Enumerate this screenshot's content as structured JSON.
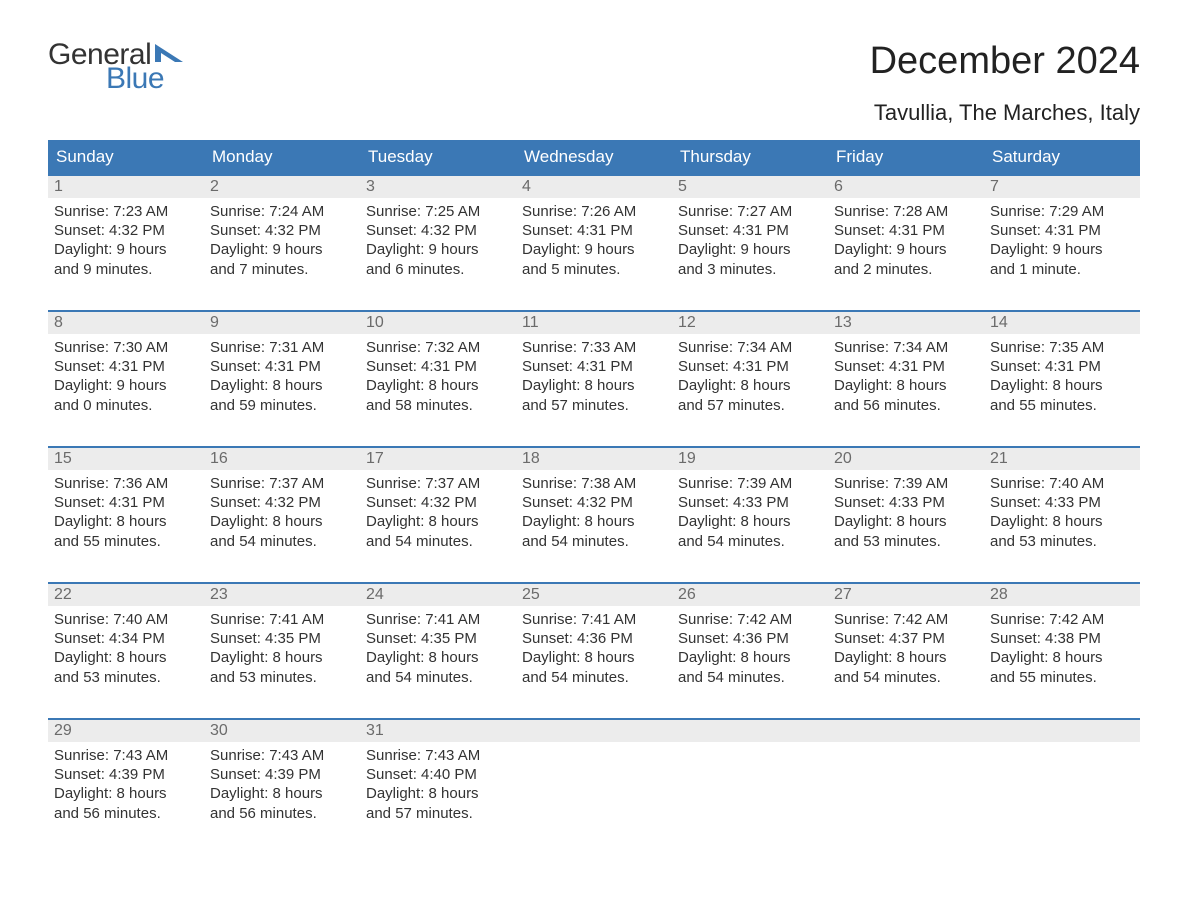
{
  "logo": {
    "word1": "General",
    "word2": "Blue",
    "text_color": "#333333",
    "accent_color": "#3b78b5"
  },
  "title": "December 2024",
  "subtitle": "Tavullia, The Marches, Italy",
  "colors": {
    "header_bg": "#3b78b5",
    "header_text": "#ffffff",
    "daynum_bg": "#ececec",
    "daynum_text": "#6b6b6b",
    "body_text": "#333333",
    "row_border": "#3b78b5",
    "page_bg": "#ffffff"
  },
  "typography": {
    "title_fontsize": 38,
    "subtitle_fontsize": 22,
    "weekday_fontsize": 17,
    "daynum_fontsize": 16,
    "body_fontsize": 15,
    "font_family": "Arial"
  },
  "weekdays": [
    "Sunday",
    "Monday",
    "Tuesday",
    "Wednesday",
    "Thursday",
    "Friday",
    "Saturday"
  ],
  "weeks": [
    [
      {
        "day": "1",
        "sunrise": "Sunrise: 7:23 AM",
        "sunset": "Sunset: 4:32 PM",
        "daylight1": "Daylight: 9 hours",
        "daylight2": "and 9 minutes."
      },
      {
        "day": "2",
        "sunrise": "Sunrise: 7:24 AM",
        "sunset": "Sunset: 4:32 PM",
        "daylight1": "Daylight: 9 hours",
        "daylight2": "and 7 minutes."
      },
      {
        "day": "3",
        "sunrise": "Sunrise: 7:25 AM",
        "sunset": "Sunset: 4:32 PM",
        "daylight1": "Daylight: 9 hours",
        "daylight2": "and 6 minutes."
      },
      {
        "day": "4",
        "sunrise": "Sunrise: 7:26 AM",
        "sunset": "Sunset: 4:31 PM",
        "daylight1": "Daylight: 9 hours",
        "daylight2": "and 5 minutes."
      },
      {
        "day": "5",
        "sunrise": "Sunrise: 7:27 AM",
        "sunset": "Sunset: 4:31 PM",
        "daylight1": "Daylight: 9 hours",
        "daylight2": "and 3 minutes."
      },
      {
        "day": "6",
        "sunrise": "Sunrise: 7:28 AM",
        "sunset": "Sunset: 4:31 PM",
        "daylight1": "Daylight: 9 hours",
        "daylight2": "and 2 minutes."
      },
      {
        "day": "7",
        "sunrise": "Sunrise: 7:29 AM",
        "sunset": "Sunset: 4:31 PM",
        "daylight1": "Daylight: 9 hours",
        "daylight2": "and 1 minute."
      }
    ],
    [
      {
        "day": "8",
        "sunrise": "Sunrise: 7:30 AM",
        "sunset": "Sunset: 4:31 PM",
        "daylight1": "Daylight: 9 hours",
        "daylight2": "and 0 minutes."
      },
      {
        "day": "9",
        "sunrise": "Sunrise: 7:31 AM",
        "sunset": "Sunset: 4:31 PM",
        "daylight1": "Daylight: 8 hours",
        "daylight2": "and 59 minutes."
      },
      {
        "day": "10",
        "sunrise": "Sunrise: 7:32 AM",
        "sunset": "Sunset: 4:31 PM",
        "daylight1": "Daylight: 8 hours",
        "daylight2": "and 58 minutes."
      },
      {
        "day": "11",
        "sunrise": "Sunrise: 7:33 AM",
        "sunset": "Sunset: 4:31 PM",
        "daylight1": "Daylight: 8 hours",
        "daylight2": "and 57 minutes."
      },
      {
        "day": "12",
        "sunrise": "Sunrise: 7:34 AM",
        "sunset": "Sunset: 4:31 PM",
        "daylight1": "Daylight: 8 hours",
        "daylight2": "and 57 minutes."
      },
      {
        "day": "13",
        "sunrise": "Sunrise: 7:34 AM",
        "sunset": "Sunset: 4:31 PM",
        "daylight1": "Daylight: 8 hours",
        "daylight2": "and 56 minutes."
      },
      {
        "day": "14",
        "sunrise": "Sunrise: 7:35 AM",
        "sunset": "Sunset: 4:31 PM",
        "daylight1": "Daylight: 8 hours",
        "daylight2": "and 55 minutes."
      }
    ],
    [
      {
        "day": "15",
        "sunrise": "Sunrise: 7:36 AM",
        "sunset": "Sunset: 4:31 PM",
        "daylight1": "Daylight: 8 hours",
        "daylight2": "and 55 minutes."
      },
      {
        "day": "16",
        "sunrise": "Sunrise: 7:37 AM",
        "sunset": "Sunset: 4:32 PM",
        "daylight1": "Daylight: 8 hours",
        "daylight2": "and 54 minutes."
      },
      {
        "day": "17",
        "sunrise": "Sunrise: 7:37 AM",
        "sunset": "Sunset: 4:32 PM",
        "daylight1": "Daylight: 8 hours",
        "daylight2": "and 54 minutes."
      },
      {
        "day": "18",
        "sunrise": "Sunrise: 7:38 AM",
        "sunset": "Sunset: 4:32 PM",
        "daylight1": "Daylight: 8 hours",
        "daylight2": "and 54 minutes."
      },
      {
        "day": "19",
        "sunrise": "Sunrise: 7:39 AM",
        "sunset": "Sunset: 4:33 PM",
        "daylight1": "Daylight: 8 hours",
        "daylight2": "and 54 minutes."
      },
      {
        "day": "20",
        "sunrise": "Sunrise: 7:39 AM",
        "sunset": "Sunset: 4:33 PM",
        "daylight1": "Daylight: 8 hours",
        "daylight2": "and 53 minutes."
      },
      {
        "day": "21",
        "sunrise": "Sunrise: 7:40 AM",
        "sunset": "Sunset: 4:33 PM",
        "daylight1": "Daylight: 8 hours",
        "daylight2": "and 53 minutes."
      }
    ],
    [
      {
        "day": "22",
        "sunrise": "Sunrise: 7:40 AM",
        "sunset": "Sunset: 4:34 PM",
        "daylight1": "Daylight: 8 hours",
        "daylight2": "and 53 minutes."
      },
      {
        "day": "23",
        "sunrise": "Sunrise: 7:41 AM",
        "sunset": "Sunset: 4:35 PM",
        "daylight1": "Daylight: 8 hours",
        "daylight2": "and 53 minutes."
      },
      {
        "day": "24",
        "sunrise": "Sunrise: 7:41 AM",
        "sunset": "Sunset: 4:35 PM",
        "daylight1": "Daylight: 8 hours",
        "daylight2": "and 54 minutes."
      },
      {
        "day": "25",
        "sunrise": "Sunrise: 7:41 AM",
        "sunset": "Sunset: 4:36 PM",
        "daylight1": "Daylight: 8 hours",
        "daylight2": "and 54 minutes."
      },
      {
        "day": "26",
        "sunrise": "Sunrise: 7:42 AM",
        "sunset": "Sunset: 4:36 PM",
        "daylight1": "Daylight: 8 hours",
        "daylight2": "and 54 minutes."
      },
      {
        "day": "27",
        "sunrise": "Sunrise: 7:42 AM",
        "sunset": "Sunset: 4:37 PM",
        "daylight1": "Daylight: 8 hours",
        "daylight2": "and 54 minutes."
      },
      {
        "day": "28",
        "sunrise": "Sunrise: 7:42 AM",
        "sunset": "Sunset: 4:38 PM",
        "daylight1": "Daylight: 8 hours",
        "daylight2": "and 55 minutes."
      }
    ],
    [
      {
        "day": "29",
        "sunrise": "Sunrise: 7:43 AM",
        "sunset": "Sunset: 4:39 PM",
        "daylight1": "Daylight: 8 hours",
        "daylight2": "and 56 minutes."
      },
      {
        "day": "30",
        "sunrise": "Sunrise: 7:43 AM",
        "sunset": "Sunset: 4:39 PM",
        "daylight1": "Daylight: 8 hours",
        "daylight2": "and 56 minutes."
      },
      {
        "day": "31",
        "sunrise": "Sunrise: 7:43 AM",
        "sunset": "Sunset: 4:40 PM",
        "daylight1": "Daylight: 8 hours",
        "daylight2": "and 57 minutes."
      },
      {
        "empty": true
      },
      {
        "empty": true
      },
      {
        "empty": true
      },
      {
        "empty": true
      }
    ]
  ]
}
